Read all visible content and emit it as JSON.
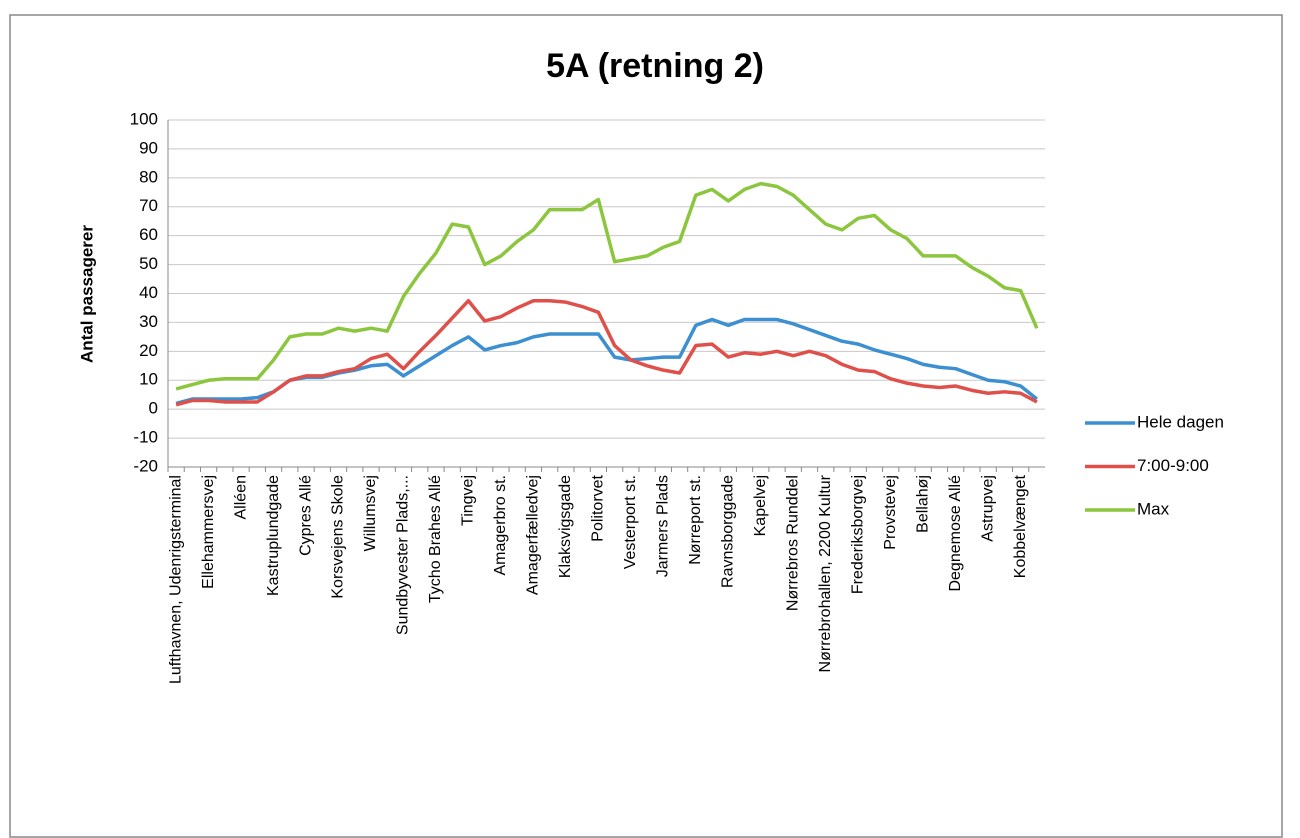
{
  "chart_data": {
    "type": "line",
    "title": "5A (retning 2)",
    "y_label": "Antal passagerer",
    "categories": [
      "Lufthavnen, Udenrigsterminal",
      null,
      "Ellehammersvej",
      null,
      "Alléen",
      null,
      "Kastruplundgade",
      null,
      "Cypres Allé",
      null,
      "Korsvejens Skole",
      null,
      "Willumsvej",
      null,
      "Sundbyvester Plads,...",
      null,
      "Tycho Brahes Allé",
      null,
      "Tingvej",
      null,
      "Amagerbro st.",
      null,
      "Amagerfælledvej",
      null,
      "Klaksvigsgade",
      null,
      "Politorvet",
      null,
      "Vesterport st.",
      null,
      "Jarmers Plads",
      null,
      "Nørreport st.",
      null,
      "Ravnsborggade",
      null,
      "Kapelvej",
      null,
      "Nørrebros Runddel",
      null,
      "Nørrebrohallen, 2200 Kultur",
      null,
      "Frederiksborgvej",
      null,
      "Provstevej",
      null,
      "Bellahøj",
      null,
      "Degnemose Allé",
      null,
      "Astrupvej",
      null,
      "Kobbelvænget",
      null
    ],
    "series": [
      {
        "name": "Hele dagen",
        "color": "#3c8fd0",
        "values": [
          2,
          3.5,
          3.5,
          3.5,
          3.5,
          4,
          6,
          10,
          11,
          11,
          12.5,
          13.5,
          15,
          15.5,
          11.5,
          15,
          18.5,
          22,
          25,
          20.5,
          22,
          23,
          25,
          26,
          26,
          26,
          26,
          18,
          17,
          17.5,
          18,
          18,
          29,
          31,
          29,
          31,
          31,
          31,
          29.5,
          27.5,
          25.5,
          23.5,
          22.5,
          20.5,
          19,
          17.5,
          15.5,
          14.5,
          14,
          12,
          10,
          9.5,
          8,
          3.5
        ]
      },
      {
        "name": "7:00-9:00",
        "color": "#e0504a",
        "values": [
          1.5,
          3,
          3,
          2.5,
          2.5,
          2.5,
          6,
          10,
          11.5,
          11.5,
          13,
          14,
          17.5,
          19,
          14,
          20,
          25.5,
          31.5,
          37.5,
          30.5,
          32,
          35,
          37.5,
          37.5,
          37,
          35.5,
          33.5,
          22,
          17,
          15,
          13.5,
          12.5,
          22,
          22.5,
          18,
          19.5,
          19,
          20,
          18.5,
          20,
          18.5,
          15.5,
          13.5,
          13,
          10.5,
          9,
          8,
          7.5,
          8,
          6.5,
          5.5,
          6,
          5.5,
          2.5
        ]
      },
      {
        "name": "Max",
        "color": "#8cc63e",
        "values": [
          7,
          8.5,
          10,
          10.5,
          10.5,
          10.5,
          17,
          25,
          26,
          26,
          28,
          27,
          28,
          27,
          39,
          47,
          54,
          64,
          63,
          50,
          53,
          58,
          62,
          69,
          69,
          69,
          72.5,
          51,
          52,
          53,
          56,
          58,
          74,
          76,
          72,
          76,
          78,
          77,
          74,
          69,
          64,
          62,
          66,
          67,
          62,
          59,
          53,
          53,
          53,
          49,
          46,
          42,
          41,
          28
        ]
      }
    ],
    "ylim": [
      -20,
      100
    ],
    "yticks": [
      -20,
      -10,
      0,
      10,
      20,
      30,
      40,
      50,
      60,
      70,
      80,
      90,
      100
    ],
    "grid": true,
    "legend": "right"
  }
}
